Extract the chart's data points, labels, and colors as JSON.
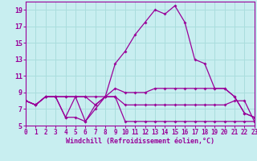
{
  "xlabel": "Windchill (Refroidissement éolien,°C)",
  "background_color": "#c8eef0",
  "grid_color": "#aadddd",
  "line_color": "#990099",
  "x_min": 0,
  "x_max": 23,
  "y_min": 5,
  "y_max": 20,
  "yticks": [
    5,
    7,
    9,
    11,
    13,
    15,
    17,
    19
  ],
  "xticks": [
    0,
    1,
    2,
    3,
    4,
    5,
    6,
    7,
    8,
    9,
    10,
    11,
    12,
    13,
    14,
    15,
    16,
    17,
    18,
    19,
    20,
    21,
    22,
    23
  ],
  "series": [
    {
      "x": [
        0,
        1,
        2,
        3,
        4,
        5,
        6,
        7,
        8,
        9,
        10,
        11,
        12,
        13,
        14,
        15,
        16,
        17,
        18,
        19,
        20,
        21,
        22,
        23
      ],
      "y": [
        8.0,
        7.5,
        8.5,
        8.5,
        6.0,
        6.0,
        5.5,
        7.0,
        8.5,
        8.5,
        5.5,
        5.5,
        5.5,
        5.5,
        5.5,
        5.5,
        5.5,
        5.5,
        5.5,
        5.5,
        5.5,
        5.5,
        5.5,
        5.5
      ]
    },
    {
      "x": [
        0,
        1,
        2,
        3,
        4,
        5,
        6,
        7,
        8,
        9,
        10,
        11,
        12,
        13,
        14,
        15,
        16,
        17,
        18,
        19,
        20,
        21,
        22,
        23
      ],
      "y": [
        8.0,
        7.5,
        8.5,
        8.5,
        8.5,
        8.5,
        8.5,
        7.5,
        8.5,
        8.5,
        7.5,
        7.5,
        7.5,
        7.5,
        7.5,
        7.5,
        7.5,
        7.5,
        7.5,
        7.5,
        7.5,
        8.0,
        8.0,
        5.5
      ]
    },
    {
      "x": [
        0,
        1,
        2,
        3,
        4,
        5,
        6,
        7,
        8,
        9,
        10,
        11,
        12,
        13,
        14,
        15,
        16,
        17,
        18,
        19,
        20,
        21,
        22,
        23
      ],
      "y": [
        8.0,
        7.5,
        8.5,
        8.5,
        8.5,
        8.5,
        8.5,
        8.5,
        8.5,
        9.5,
        9.0,
        9.0,
        9.0,
        9.5,
        9.5,
        9.5,
        9.5,
        9.5,
        9.5,
        9.5,
        9.5,
        8.5,
        6.5,
        6.0
      ]
    },
    {
      "x": [
        0,
        1,
        2,
        3,
        4,
        5,
        6,
        7,
        8,
        9,
        10,
        11,
        12,
        13,
        14,
        15,
        16,
        17,
        18,
        19,
        20,
        21,
        22,
        23
      ],
      "y": [
        8.0,
        7.5,
        8.5,
        8.5,
        6.0,
        8.5,
        5.5,
        7.5,
        8.5,
        12.5,
        14.0,
        16.0,
        17.5,
        19.0,
        18.5,
        19.5,
        17.5,
        13.0,
        12.5,
        9.5,
        9.5,
        8.5,
        6.5,
        6.0
      ]
    }
  ]
}
